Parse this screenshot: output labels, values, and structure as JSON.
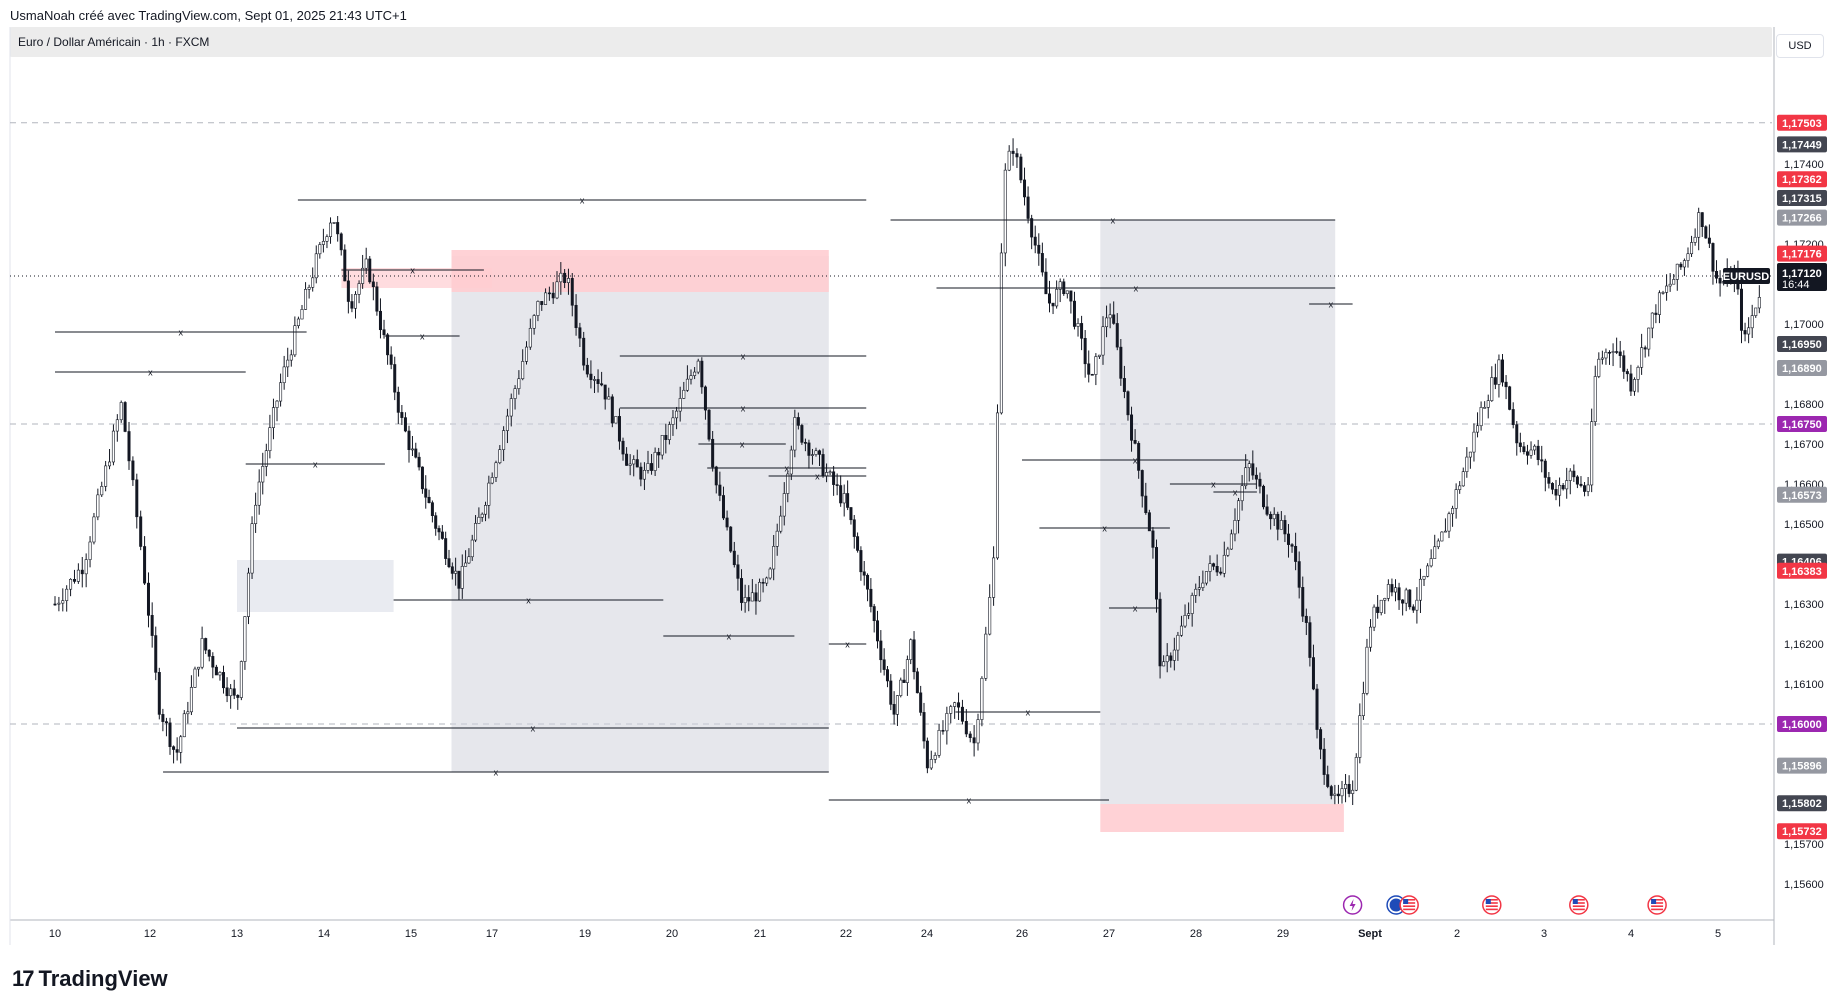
{
  "header": {
    "caption": "UsmaNoah créé avec TradingView.com, Sept 01, 2025 21:43 UTC+1",
    "symbol_title": "Euro / Dollar Américain · 1h · FXCM",
    "currency_button": "USD"
  },
  "price_axis": {
    "ticks": [
      "1,17400",
      "1,17200",
      "1,17000",
      "1,16800",
      "1,16700",
      "1,16600",
      "1,16500",
      "1,16300",
      "1,16200",
      "1,16100",
      "1,15700",
      "1,15600"
    ],
    "tick_values": [
      1.174,
      1.172,
      1.17,
      1.168,
      1.167,
      1.166,
      1.165,
      1.163,
      1.162,
      1.161,
      1.157,
      1.156
    ],
    "labels": [
      {
        "text": "1,17503",
        "value": 1.17503,
        "color": "#f23645"
      },
      {
        "text": "1,17449",
        "value": 1.17449,
        "color": "#434651"
      },
      {
        "text": "1,17362",
        "value": 1.17362,
        "color": "#f23645"
      },
      {
        "text": "1,17315",
        "value": 1.17315,
        "color": "#434651"
      },
      {
        "text": "1,17266",
        "value": 1.17266,
        "color": "#9598a1"
      },
      {
        "text": "1,17176",
        "value": 1.17176,
        "color": "#f23645"
      },
      {
        "text": "1,16950",
        "value": 1.1695,
        "color": "#434651"
      },
      {
        "text": "1,16890",
        "value": 1.1689,
        "color": "#9598a1"
      },
      {
        "text": "1,16750",
        "value": 1.1675,
        "color": "#9c27b0"
      },
      {
        "text": "1,16573",
        "value": 1.16573,
        "color": "#9598a1"
      },
      {
        "text": "1,16406",
        "value": 1.16406,
        "color": "#434651"
      },
      {
        "text": "1,16383",
        "value": 1.16383,
        "color": "#f23645"
      },
      {
        "text": "1,16000",
        "value": 1.16,
        "color": "#9c27b0"
      },
      {
        "text": "1,15896",
        "value": 1.15896,
        "color": "#9598a1"
      },
      {
        "text": "1,15802",
        "value": 1.15802,
        "color": "#434651"
      },
      {
        "text": "1,15732",
        "value": 1.15732,
        "color": "#f23645"
      }
    ],
    "current": {
      "symbol": "EURUSD",
      "price": "1,17120",
      "countdown": "16:44",
      "value": 1.1712
    }
  },
  "time_axis": {
    "labels": [
      {
        "text": "10",
        "day": 0
      },
      {
        "text": "12",
        "day": 1
      },
      {
        "text": "13",
        "day": 2
      },
      {
        "text": "14",
        "day": 3
      },
      {
        "text": "15",
        "day": 4
      },
      {
        "text": "17",
        "day": 5
      },
      {
        "text": "19",
        "day": 6
      },
      {
        "text": "20",
        "day": 7
      },
      {
        "text": "21",
        "day": 8
      },
      {
        "text": "22",
        "day": 9
      },
      {
        "text": "24",
        "day": 10
      },
      {
        "text": "26",
        "day": 11
      },
      {
        "text": "27",
        "day": 12
      },
      {
        "text": "28",
        "day": 13
      },
      {
        "text": "29",
        "day": 14
      },
      {
        "text": "Sept",
        "day": 15
      },
      {
        "text": "2",
        "day": 16
      },
      {
        "text": "3",
        "day": 17
      },
      {
        "text": "4",
        "day": 18
      },
      {
        "text": "5",
        "day": 19
      }
    ]
  },
  "chart_data": {
    "type": "candlestick",
    "symbol": "EURUSD",
    "interval": "1h",
    "ylim": [
      1.1551,
      1.1766
    ],
    "path": [
      [
        0,
        1.163
      ],
      [
        0.3,
        1.164
      ],
      [
        0.5,
        1.166
      ],
      [
        0.7,
        1.168
      ],
      [
        0.9,
        1.1645
      ],
      [
        1.1,
        1.1605
      ],
      [
        1.3,
        1.1592
      ],
      [
        1.6,
        1.162
      ],
      [
        2.0,
        1.1605
      ],
      [
        2.2,
        1.1655
      ],
      [
        2.5,
        1.1685
      ],
      [
        2.9,
        1.1715
      ],
      [
        3.1,
        1.1728
      ],
      [
        3.3,
        1.1705
      ],
      [
        3.5,
        1.1715
      ],
      [
        3.9,
        1.1675
      ],
      [
        4.3,
        1.165
      ],
      [
        4.6,
        1.1635
      ],
      [
        4.9,
        1.1655
      ],
      [
        5.2,
        1.168
      ],
      [
        5.5,
        1.1705
      ],
      [
        5.8,
        1.1712
      ],
      [
        6.0,
        1.169
      ],
      [
        6.2,
        1.1685
      ],
      [
        6.5,
        1.1665
      ],
      [
        6.7,
        1.1662
      ],
      [
        7.0,
        1.1675
      ],
      [
        7.3,
        1.1692
      ],
      [
        7.5,
        1.166
      ],
      [
        7.8,
        1.163
      ],
      [
        8.1,
        1.1635
      ],
      [
        8.4,
        1.1675
      ],
      [
        8.7,
        1.1665
      ],
      [
        9.0,
        1.1655
      ],
      [
        9.3,
        1.163
      ],
      [
        9.6,
        1.1602
      ],
      [
        9.8,
        1.162
      ],
      [
        10.0,
        1.159
      ],
      [
        10.3,
        1.1605
      ],
      [
        10.5,
        1.1595
      ],
      [
        10.7,
        1.164
      ],
      [
        10.8,
        1.1735
      ],
      [
        10.9,
        1.1745
      ],
      [
        11.1,
        1.1725
      ],
      [
        11.3,
        1.1705
      ],
      [
        11.5,
        1.171
      ],
      [
        11.8,
        1.1685
      ],
      [
        12.0,
        1.1705
      ],
      [
        12.2,
        1.168
      ],
      [
        12.5,
        1.1645
      ],
      [
        12.6,
        1.1612
      ],
      [
        12.8,
        1.1622
      ],
      [
        13.1,
        1.1638
      ],
      [
        13.3,
        1.164
      ],
      [
        13.6,
        1.1665
      ],
      [
        13.8,
        1.1655
      ],
      [
        14.1,
        1.1645
      ],
      [
        14.3,
        1.162
      ],
      [
        14.4,
        1.1595
      ],
      [
        14.6,
        1.158
      ],
      [
        14.8,
        1.1585
      ],
      [
        15.0,
        1.1625
      ],
      [
        15.2,
        1.1635
      ],
      [
        15.5,
        1.163
      ],
      [
        15.8,
        1.1645
      ],
      [
        16.1,
        1.1665
      ],
      [
        16.3,
        1.168
      ],
      [
        16.5,
        1.169
      ],
      [
        16.7,
        1.167
      ],
      [
        16.9,
        1.1668
      ],
      [
        17.1,
        1.1658
      ],
      [
        17.3,
        1.1662
      ],
      [
        17.5,
        1.1658
      ],
      [
        17.6,
        1.169
      ],
      [
        17.8,
        1.1695
      ],
      [
        18.0,
        1.1685
      ],
      [
        18.3,
        1.1705
      ],
      [
        18.6,
        1.1715
      ],
      [
        18.8,
        1.1728
      ],
      [
        19.0,
        1.171
      ],
      [
        19.2,
        1.1712
      ],
      [
        19.3,
        1.1695
      ],
      [
        19.5,
        1.171
      ]
    ]
  },
  "drawings": {
    "boxes": [
      {
        "x1": 4.5,
        "x2": 8.8,
        "y1": 1.1717,
        "y2": 1.1588,
        "color": "#d1d4dc",
        "opacity": 0.55
      },
      {
        "x1": 4.5,
        "x2": 8.8,
        "y1": 1.17185,
        "y2": 1.1708,
        "color": "#ffcdd2",
        "opacity": 0.9
      },
      {
        "x1": 3.2,
        "x2": 5.0,
        "y1": 1.1714,
        "y2": 1.1709,
        "color": "#ffcdd2",
        "opacity": 0.7
      },
      {
        "x1": 2.0,
        "x2": 3.8,
        "y1": 1.1641,
        "y2": 1.1628,
        "color": "#e0e3eb",
        "opacity": 0.7
      },
      {
        "x1": 11.9,
        "x2": 14.6,
        "y1": 1.1726,
        "y2": 1.158,
        "color": "#d1d4dc",
        "opacity": 0.55
      },
      {
        "x1": 11.9,
        "x2": 14.7,
        "y1": 1.158,
        "y2": 1.1573,
        "color": "#ffcdd2",
        "opacity": 0.9
      }
    ],
    "levels": [
      {
        "x1": 0,
        "x2": 2.8,
        "y": 1.1698
      },
      {
        "x1": 0,
        "x2": 2.1,
        "y": 1.1688
      },
      {
        "x1": 2.1,
        "x2": 3.7,
        "y": 1.1665
      },
      {
        "x1": 2.7,
        "x2": 9.25,
        "y": 1.1731
      },
      {
        "x1": 3.2,
        "x2": 4.9,
        "y": 1.17135
      },
      {
        "x1": 3.7,
        "x2": 4.6,
        "y": 1.1697
      },
      {
        "x1": 3.8,
        "x2": 6.9,
        "y": 1.1631
      },
      {
        "x1": 6.4,
        "x2": 9.25,
        "y": 1.1692
      },
      {
        "x1": 6.4,
        "x2": 9.25,
        "y": 1.1679
      },
      {
        "x1": 7.3,
        "x2": 8.3,
        "y": 1.167
      },
      {
        "x1": 7.4,
        "x2": 9.25,
        "y": 1.1664
      },
      {
        "x1": 8.1,
        "x2": 9.25,
        "y": 1.1662
      },
      {
        "x1": 6.9,
        "x2": 8.4,
        "y": 1.1622
      },
      {
        "x1": 2.0,
        "x2": 8.8,
        "y": 1.1599
      },
      {
        "x1": 1.15,
        "x2": 8.8,
        "y": 1.1588
      },
      {
        "x1": 8.8,
        "x2": 9.25,
        "y": 1.162
      },
      {
        "x1": 8.8,
        "x2": 12.0,
        "y": 1.1581
      },
      {
        "x1": 9.55,
        "x2": 14.6,
        "y": 1.1726
      },
      {
        "x1": 10.1,
        "x2": 14.6,
        "y": 1.1709
      },
      {
        "x1": 10.3,
        "x2": 11.9,
        "y": 1.1603
      },
      {
        "x1": 11.0,
        "x2": 13.6,
        "y": 1.1666
      },
      {
        "x1": 11.2,
        "x2": 12.7,
        "y": 1.1649
      },
      {
        "x1": 12.0,
        "x2": 12.6,
        "y": 1.1629
      },
      {
        "x1": 12.7,
        "x2": 13.7,
        "y": 1.166
      },
      {
        "x1": 13.2,
        "x2": 13.7,
        "y": 1.1658
      },
      {
        "x1": 14.3,
        "x2": 14.8,
        "y": 1.1705
      }
    ],
    "dashed_levels": [
      1.17503,
      1.1675,
      1.16
    ],
    "dotted_current": 1.1712
  },
  "legend_icons": [
    {
      "name": "lightning-event-icon",
      "day": 14.8,
      "color": "#9c27b0"
    },
    {
      "name": "eu-flag-icon",
      "day": 15.3,
      "color": "#1e4bb8"
    },
    {
      "name": "us-flag-icon",
      "day": 15.45,
      "color": "#f23645"
    },
    {
      "name": "us-flag-icon",
      "day": 16.4,
      "color": "#f23645"
    },
    {
      "name": "us-flag-icon",
      "day": 17.4,
      "color": "#f23645"
    },
    {
      "name": "us-flag-icon",
      "day": 18.3,
      "color": "#f23645"
    }
  ],
  "brand": {
    "name": "TradingView",
    "mark": "17"
  }
}
